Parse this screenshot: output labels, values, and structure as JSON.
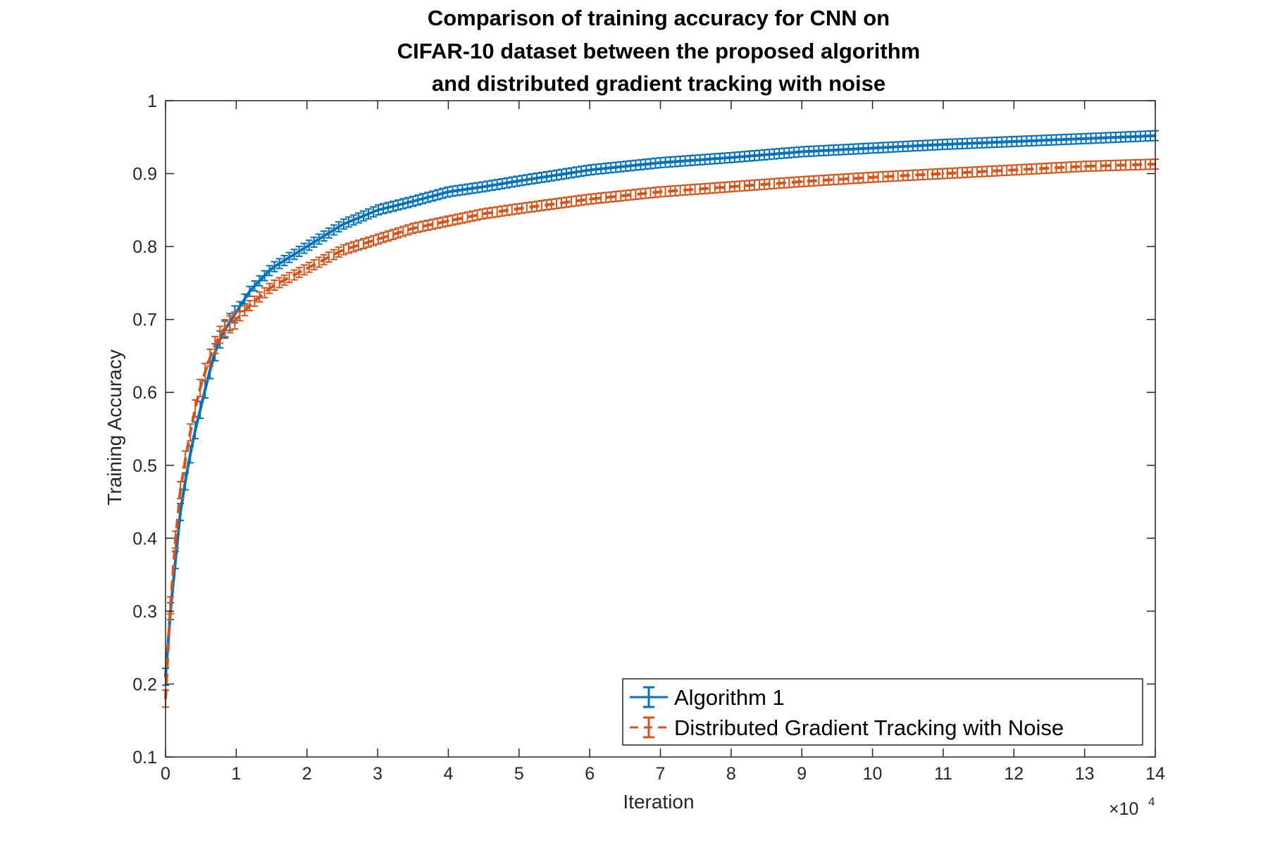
{
  "chart_data": {
    "type": "line",
    "title_lines": [
      "Comparison of training accuracy for CNN on",
      "CIFAR-10 dataset between the proposed algorithm",
      "and distributed gradient tracking with noise"
    ],
    "xlabel": "Iteration",
    "ylabel": "Training Accuracy",
    "x_exponent_label": "×10",
    "x_exponent_power": "4",
    "xlim": [
      0,
      140000
    ],
    "ylim": [
      0.1,
      1
    ],
    "xticks": [
      0,
      10000,
      20000,
      30000,
      40000,
      50000,
      60000,
      70000,
      80000,
      90000,
      100000,
      110000,
      120000,
      130000,
      140000
    ],
    "xtick_labels": [
      "0",
      "1",
      "2",
      "3",
      "4",
      "5",
      "6",
      "7",
      "8",
      "9",
      "10",
      "11",
      "12",
      "13",
      "14"
    ],
    "yticks": [
      0.1,
      0.2,
      0.3,
      0.4,
      0.5,
      0.6,
      0.7,
      0.8,
      0.9,
      1
    ],
    "ytick_labels": [
      "0.1",
      "0.2",
      "0.3",
      "0.4",
      "0.5",
      "0.6",
      "0.7",
      "0.8",
      "0.9",
      "1"
    ],
    "grid": false,
    "legend_position": "bottom-right",
    "error_bars": true,
    "series": [
      {
        "name": "Algorithm 1",
        "color": "#0072BD",
        "line_style": "solid",
        "x": [
          0,
          500,
          1000,
          1500,
          2000,
          3000,
          4000,
          5000,
          6000,
          7000,
          8000,
          10000,
          12000,
          15000,
          20000,
          25000,
          30000,
          35000,
          40000,
          45000,
          50000,
          60000,
          70000,
          80000,
          90000,
          100000,
          110000,
          120000,
          130000,
          140000
        ],
        "y": [
          0.21,
          0.28,
          0.33,
          0.38,
          0.43,
          0.49,
          0.54,
          0.58,
          0.62,
          0.655,
          0.68,
          0.71,
          0.74,
          0.77,
          0.8,
          0.83,
          0.85,
          0.862,
          0.875,
          0.882,
          0.89,
          0.905,
          0.915,
          0.922,
          0.93,
          0.935,
          0.94,
          0.944,
          0.948,
          0.952
        ]
      },
      {
        "name": "Distributed Gradient Tracking with Noise",
        "color": "#D95319",
        "line_style": "dashed",
        "x": [
          0,
          500,
          1000,
          1500,
          2000,
          3000,
          4000,
          5000,
          6000,
          7000,
          8000,
          10000,
          12000,
          15000,
          20000,
          25000,
          30000,
          35000,
          40000,
          45000,
          50000,
          60000,
          70000,
          80000,
          90000,
          100000,
          110000,
          120000,
          130000,
          140000
        ],
        "y": [
          0.18,
          0.28,
          0.35,
          0.41,
          0.46,
          0.52,
          0.57,
          0.61,
          0.64,
          0.665,
          0.685,
          0.7,
          0.72,
          0.745,
          0.77,
          0.795,
          0.81,
          0.825,
          0.835,
          0.845,
          0.852,
          0.865,
          0.875,
          0.882,
          0.889,
          0.895,
          0.9,
          0.905,
          0.91,
          0.913
        ]
      }
    ]
  }
}
